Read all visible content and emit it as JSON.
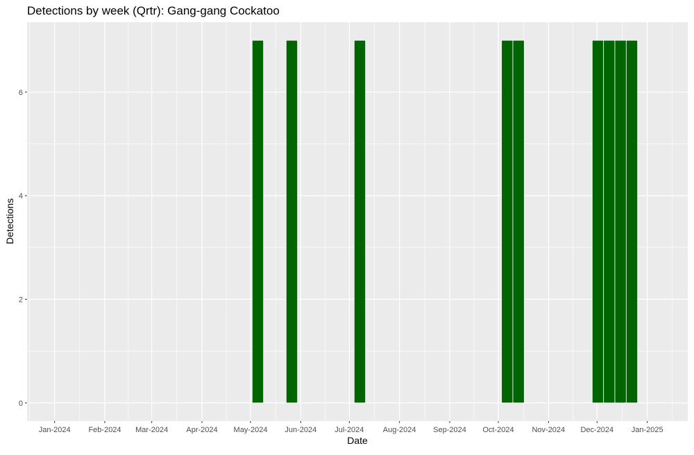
{
  "chart_data": {
    "type": "bar",
    "title": "Detections by week (Qrtr): Gang-gang Cockatoo",
    "xlabel": "Date",
    "ylabel": "Detections",
    "xlim": [
      "2023-12-15",
      "2025-01-26"
    ],
    "ylim": [
      -0.35,
      7.35
    ],
    "y_ticks": [
      0,
      2,
      4,
      6
    ],
    "x_ticks": [
      {
        "date": "2024-01-01",
        "label": "Jan-2024"
      },
      {
        "date": "2024-02-01",
        "label": "Feb-2024"
      },
      {
        "date": "2024-03-01",
        "label": "Mar-2024"
      },
      {
        "date": "2024-04-01",
        "label": "Apr-2024"
      },
      {
        "date": "2024-05-01",
        "label": "May-2024"
      },
      {
        "date": "2024-06-01",
        "label": "Jun-2024"
      },
      {
        "date": "2024-07-01",
        "label": "Jul-2024"
      },
      {
        "date": "2024-08-01",
        "label": "Aug-2024"
      },
      {
        "date": "2024-09-01",
        "label": "Sep-2024"
      },
      {
        "date": "2024-10-01",
        "label": "Oct-2024"
      },
      {
        "date": "2024-11-01",
        "label": "Nov-2024"
      },
      {
        "date": "2024-12-01",
        "label": "Dec-2024"
      },
      {
        "date": "2025-01-01",
        "label": "Jan-2025"
      }
    ],
    "bars": [
      {
        "week_start": "2024-05-02",
        "value": 7
      },
      {
        "week_start": "2024-05-23",
        "value": 7
      },
      {
        "week_start": "2024-07-04",
        "value": 7
      },
      {
        "week_start": "2024-10-03",
        "value": 7
      },
      {
        "week_start": "2024-10-10",
        "value": 7
      },
      {
        "week_start": "2024-11-28",
        "value": 7
      },
      {
        "week_start": "2024-12-05",
        "value": 7
      },
      {
        "week_start": "2024-12-12",
        "value": 7
      },
      {
        "week_start": "2024-12-19",
        "value": 7
      }
    ],
    "grid": true,
    "colors": {
      "bar": "#006400",
      "panel": "#ebebeb",
      "grid": "#ffffff",
      "text": "#000000",
      "tick_text": "#4d4d4d",
      "tick": "#333333"
    }
  }
}
